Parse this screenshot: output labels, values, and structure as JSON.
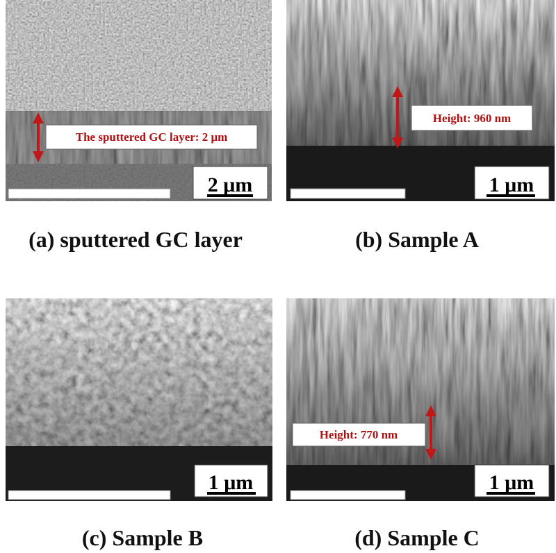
{
  "panels": [
    {
      "caption": "(a) sputtered GC layer",
      "annotation": "The sputtered GC layer: 2 μm",
      "scale_bar": "2 μm"
    },
    {
      "caption": "(b) Sample A",
      "annotation": "Height: 960 nm",
      "scale_bar": "1 μm"
    },
    {
      "caption": "(c) Sample B",
      "scale_bar": "1 μm"
    },
    {
      "caption": "(d) Sample C",
      "annotation": "Height: 770 nm",
      "scale_bar": "1 μm"
    }
  ]
}
